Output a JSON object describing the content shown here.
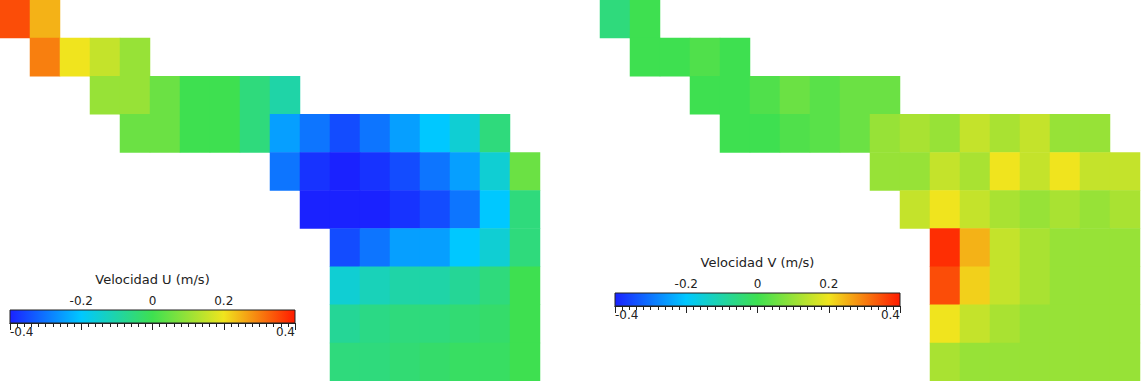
{
  "chart_data": [
    {
      "type": "heatmap",
      "tick_labels": false,
      "colorbar": {
        "label": "Velocidad U (m/s)",
        "range": [
          -0.4,
          0.4
        ],
        "ticks": [
          -0.4,
          -0.2,
          0,
          0.2,
          0.4
        ]
      },
      "cells": [
        [
          0.35,
          0.25,
          null,
          null,
          null,
          null,
          null,
          null,
          null,
          null,
          null,
          null,
          null,
          null,
          null,
          null,
          null,
          null
        ],
        [
          null,
          0.3,
          0.2,
          0.15,
          0.1,
          null,
          null,
          null,
          null,
          null,
          null,
          null,
          null,
          null,
          null,
          null,
          null,
          null
        ],
        [
          null,
          null,
          null,
          0.1,
          0.1,
          0.05,
          0,
          0,
          -0.05,
          -0.1,
          null,
          null,
          null,
          null,
          null,
          null,
          null,
          null
        ],
        [
          null,
          null,
          null,
          null,
          0.05,
          0.05,
          0,
          0,
          -0.05,
          -0.25,
          -0.3,
          -0.35,
          -0.3,
          -0.25,
          -0.2,
          -0.15,
          -0.05,
          null
        ],
        [
          null,
          null,
          null,
          null,
          null,
          null,
          null,
          null,
          null,
          -0.3,
          -0.38,
          -0.4,
          -0.38,
          -0.35,
          -0.3,
          -0.25,
          -0.15,
          0.05
        ],
        [
          null,
          null,
          null,
          null,
          null,
          null,
          null,
          null,
          null,
          null,
          -0.4,
          -0.4,
          -0.4,
          -0.38,
          -0.35,
          -0.3,
          -0.2,
          -0.05
        ],
        [
          null,
          null,
          null,
          null,
          null,
          null,
          null,
          null,
          null,
          null,
          null,
          -0.35,
          -0.3,
          -0.25,
          -0.25,
          -0.2,
          -0.15,
          -0.05
        ],
        [
          null,
          null,
          null,
          null,
          null,
          null,
          null,
          null,
          null,
          null,
          null,
          -0.15,
          -0.12,
          -0.1,
          -0.1,
          -0.08,
          -0.05,
          0
        ],
        [
          null,
          null,
          null,
          null,
          null,
          null,
          null,
          null,
          null,
          null,
          null,
          -0.08,
          -0.06,
          -0.05,
          -0.05,
          -0.04,
          -0.03,
          0
        ],
        [
          null,
          null,
          null,
          null,
          null,
          null,
          null,
          null,
          null,
          null,
          null,
          -0.05,
          -0.05,
          -0.04,
          -0.03,
          -0.02,
          -0.02,
          0
        ]
      ]
    },
    {
      "type": "heatmap",
      "tick_labels": false,
      "colorbar": {
        "label": "Velocidad V (m/s)",
        "range": [
          -0.4,
          0.4
        ],
        "ticks": [
          -0.4,
          -0.2,
          0,
          0.2,
          0.4
        ]
      },
      "cells": [
        [
          -0.05,
          0,
          null,
          null,
          null,
          null,
          null,
          null,
          null,
          null,
          null,
          null,
          null,
          null,
          null,
          null,
          null,
          null
        ],
        [
          null,
          0,
          0,
          0.02,
          0,
          null,
          null,
          null,
          null,
          null,
          null,
          null,
          null,
          null,
          null,
          null,
          null,
          null
        ],
        [
          null,
          null,
          null,
          0,
          0,
          0.02,
          0.05,
          0.03,
          0.05,
          0.05,
          null,
          null,
          null,
          null,
          null,
          null,
          null,
          null
        ],
        [
          null,
          null,
          null,
          null,
          0,
          0,
          0.02,
          0.03,
          0.05,
          0.1,
          0.12,
          0.1,
          0.15,
          0.12,
          0.15,
          0.1,
          0.1,
          null
        ],
        [
          null,
          null,
          null,
          null,
          null,
          null,
          null,
          null,
          null,
          0.1,
          0.1,
          0.15,
          0.12,
          0.2,
          0.15,
          0.2,
          0.15,
          0.15
        ],
        [
          null,
          null,
          null,
          null,
          null,
          null,
          null,
          null,
          null,
          null,
          0.15,
          0.2,
          0.15,
          0.12,
          0.1,
          0.12,
          0.1,
          0.12
        ],
        [
          null,
          null,
          null,
          null,
          null,
          null,
          null,
          null,
          null,
          null,
          null,
          0.38,
          0.25,
          0.15,
          0.12,
          0.1,
          0.1,
          0.1
        ],
        [
          null,
          null,
          null,
          null,
          null,
          null,
          null,
          null,
          null,
          null,
          null,
          0.35,
          0.22,
          0.15,
          0.12,
          0.1,
          0.1,
          0.1
        ],
        [
          null,
          null,
          null,
          null,
          null,
          null,
          null,
          null,
          null,
          null,
          null,
          0.2,
          0.15,
          0.12,
          0.1,
          0.1,
          0.1,
          0.1
        ],
        [
          null,
          null,
          null,
          null,
          null,
          null,
          null,
          null,
          null,
          null,
          null,
          0.12,
          0.1,
          0.1,
          0.1,
          0.1,
          0.1,
          0.1
        ]
      ]
    }
  ]
}
